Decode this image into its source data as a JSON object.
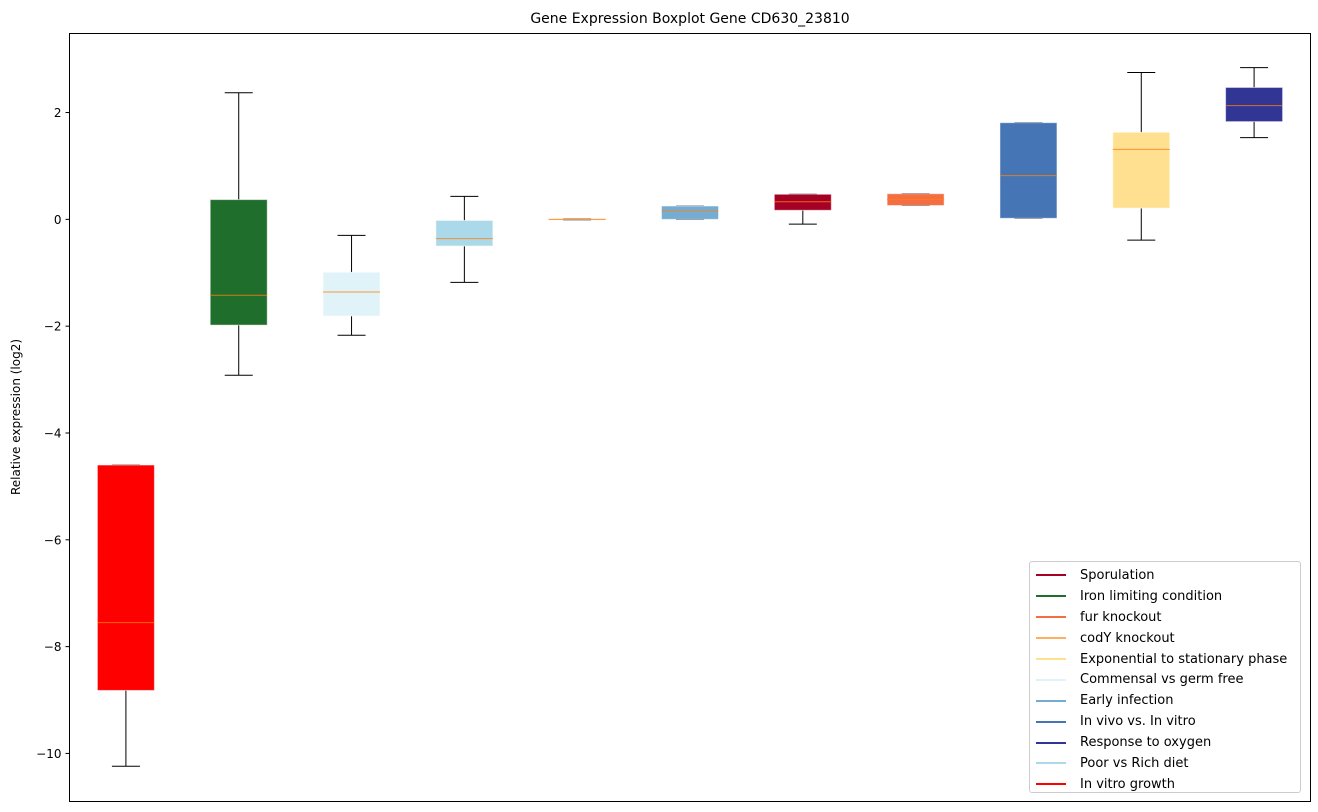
{
  "chart_data": {
    "type": "boxplot",
    "title": "Gene Expression Boxplot Gene CD630_23810",
    "xlabel": "",
    "ylabel": "Relative expression (log2)",
    "ylim": [
      -10.9,
      3.48
    ],
    "yticks": [
      2,
      0,
      -2,
      -4,
      -6,
      -8,
      -10
    ],
    "ytick_labels": [
      "2",
      "0",
      "−2",
      "−4",
      "−6",
      "−8",
      "−10"
    ],
    "grid": false,
    "legend_position": "lower-right",
    "median_color": "#ff7f0e",
    "boxes": [
      {
        "name": "In vitro growth",
        "color": "#ff0000",
        "whislo": -10.24,
        "q1": -8.82,
        "med": -7.55,
        "q3": -4.6,
        "whishi": -4.6
      },
      {
        "name": "Iron limiting condition",
        "color": "#1f6e2c",
        "whislo": -2.92,
        "q1": -1.98,
        "med": -1.42,
        "q3": 0.37,
        "whishi": 2.37
      },
      {
        "name": "Commensal vs germ free",
        "color": "#e0f3f8",
        "whislo": -2.17,
        "q1": -1.81,
        "med": -1.36,
        "q3": -0.99,
        "whishi": -0.3
      },
      {
        "name": "Poor vs Rich diet",
        "color": "#abd9e9",
        "whislo": -1.18,
        "q1": -0.5,
        "med": -0.36,
        "q3": -0.02,
        "whishi": 0.43
      },
      {
        "name": "codY knockout",
        "color": "#fdae61",
        "whislo": -0.01,
        "q1": -0.01,
        "med": 0.0,
        "q3": 0.01,
        "whishi": 0.01
      },
      {
        "name": "Early infection",
        "color": "#74add1",
        "whislo": 0.0,
        "q1": 0.0,
        "med": 0.16,
        "q3": 0.25,
        "whishi": 0.25
      },
      {
        "name": "Sporulation",
        "color": "#a50026",
        "whislo": -0.09,
        "q1": 0.17,
        "med": 0.33,
        "q3": 0.47,
        "whishi": 0.47
      },
      {
        "name": "fur knockout",
        "color": "#f46d43",
        "whislo": 0.26,
        "q1": 0.26,
        "med": 0.37,
        "q3": 0.48,
        "whishi": 0.48
      },
      {
        "name": "In vivo vs. In vitro",
        "color": "#4575b4",
        "whislo": 0.02,
        "q1": 0.02,
        "med": 0.82,
        "q3": 1.81,
        "whishi": 1.81
      },
      {
        "name": "Exponential to stationary phase",
        "color": "#fee090",
        "whislo": -0.39,
        "q1": 0.21,
        "med": 1.31,
        "q3": 1.63,
        "whishi": 2.75
      },
      {
        "name": "Response to oxygen",
        "color": "#313695",
        "whislo": 1.53,
        "q1": 1.83,
        "med": 2.13,
        "q3": 2.47,
        "whishi": 2.84
      }
    ],
    "legend": [
      {
        "label": "Sporulation",
        "color": "#a50026"
      },
      {
        "label": "Iron limiting condition",
        "color": "#1f6e2c"
      },
      {
        "label": "fur knockout",
        "color": "#f46d43"
      },
      {
        "label": "codY knockout",
        "color": "#fdae61"
      },
      {
        "label": "Exponential to stationary phase",
        "color": "#fee090"
      },
      {
        "label": "Commensal vs germ free",
        "color": "#e0f3f8"
      },
      {
        "label": "Early infection",
        "color": "#74add1"
      },
      {
        "label": "In vivo vs. In vitro",
        "color": "#4575b4"
      },
      {
        "label": "Response to oxygen",
        "color": "#313695"
      },
      {
        "label": "Poor vs Rich diet",
        "color": "#abd9e9"
      },
      {
        "label": "In vitro growth",
        "color": "#ff0000"
      }
    ]
  }
}
